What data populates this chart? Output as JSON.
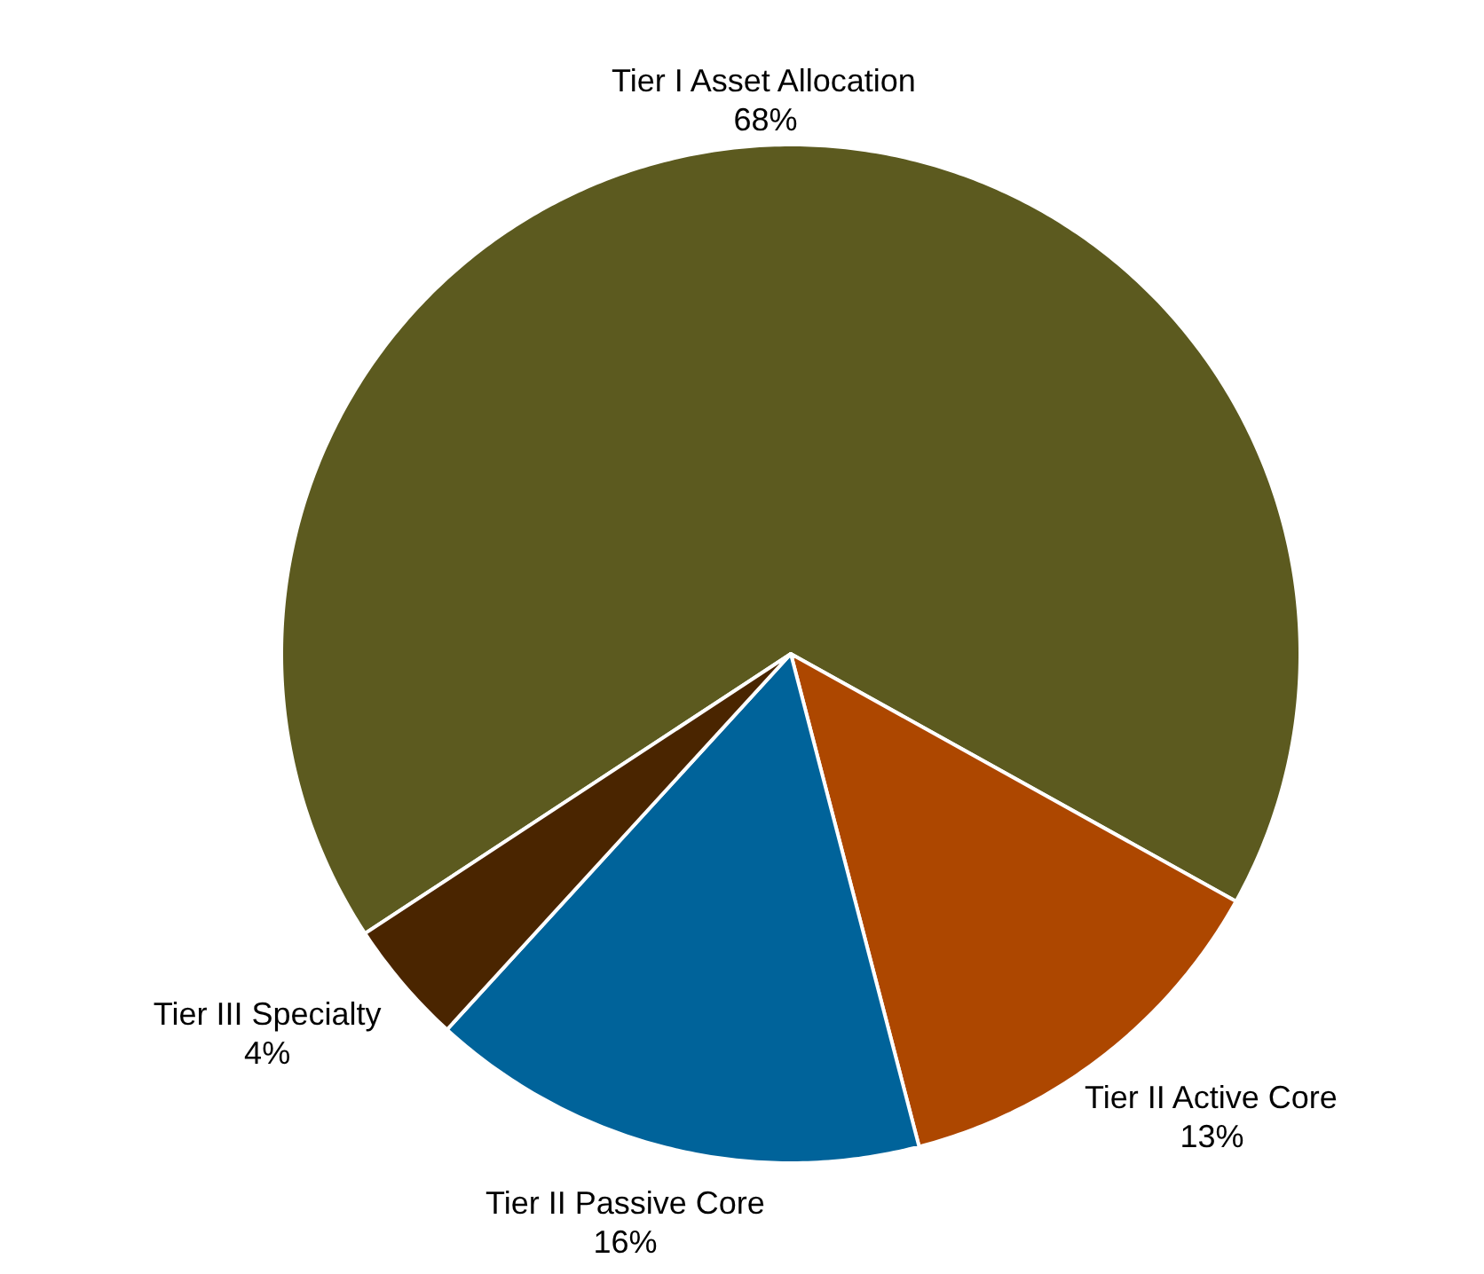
{
  "chart_data": {
    "type": "pie",
    "categories": [
      "Tier I Asset Allocation",
      "Tier II Active Core",
      "Tier II Passive Core",
      "Tier III Specialty"
    ],
    "values": [
      68,
      13,
      16,
      4
    ],
    "colors": [
      "#5c5a1f",
      "#ad4700",
      "#00639a",
      "#4a2500"
    ],
    "value_labels": [
      "68%",
      "13%",
      "16%",
      "4%"
    ],
    "legend": false
  }
}
